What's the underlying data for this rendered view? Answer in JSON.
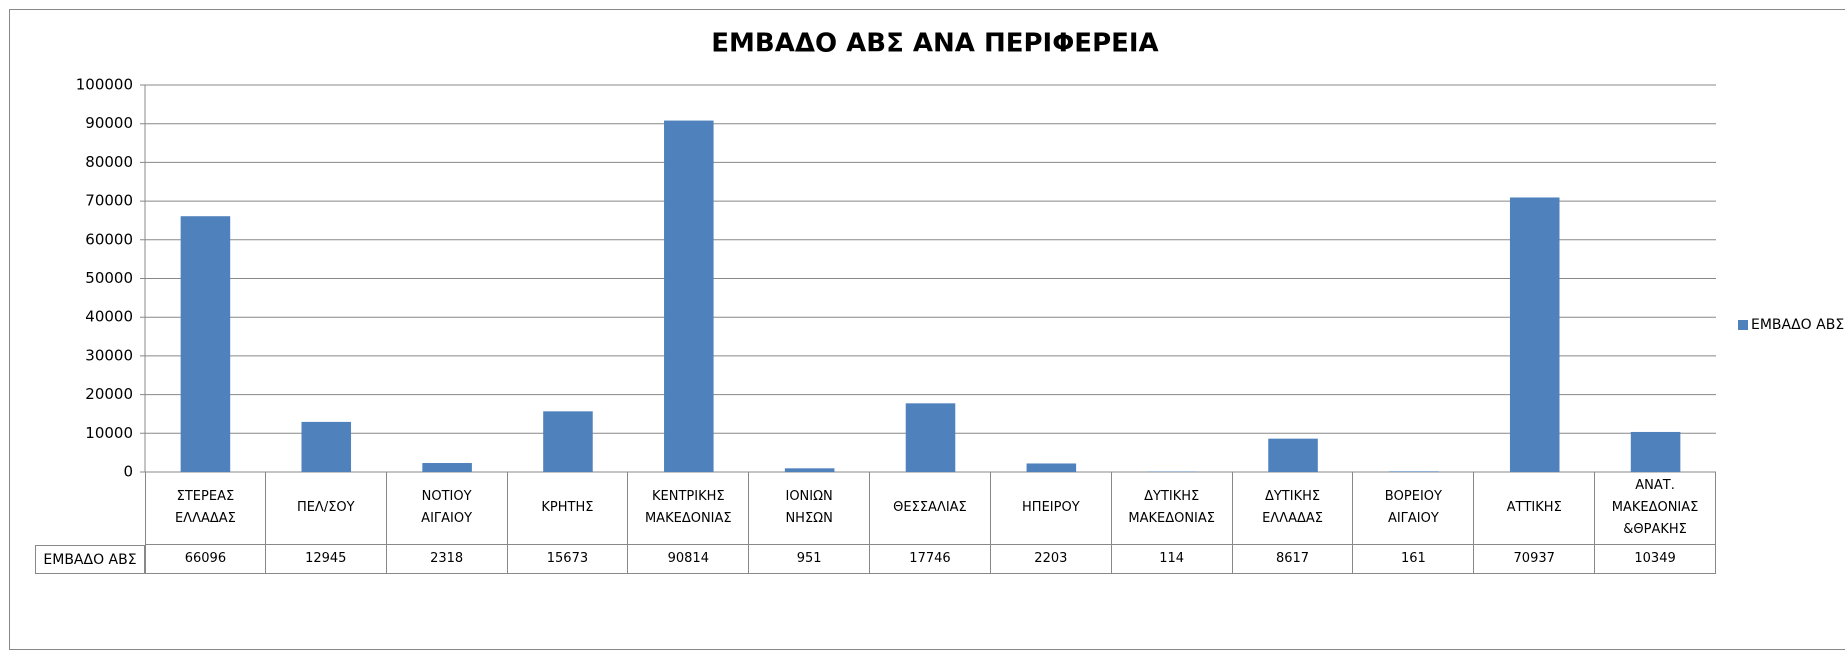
{
  "chart_data": {
    "type": "bar",
    "title": "ΕΜΒΑΔΟ ΑΒΣ ΑΝΑ ΠΕΡΙΦΕΡΕΙΑ",
    "categories": [
      "ΣΤΕΡΕΑΣ ΕΛΛΑΔΑΣ",
      "ΠΕΛ/ΣΟΥ",
      "ΝΟΤΙΟΥ ΑΙΓΑΙΟΥ",
      "ΚΡΗΤΗΣ",
      "ΚΕΝΤΡΙΚΗΣ ΜΑΚΕΔΟΝΙΑΣ",
      "ΙΟΝΙΩΝ ΝΗΣΩΝ",
      "ΘΕΣΣΑΛΙΑΣ",
      "ΗΠΕΙΡΟΥ",
      "ΔΥΤΙΚΗΣ ΜΑΚΕΔΟΝΙΑΣ",
      "ΔΥΤΙΚΗΣ ΕΛΛΑΔΑΣ",
      "ΒΟΡΕΙΟΥ ΑΙΓΑΙΟΥ",
      "ΑΤΤΙΚΗΣ",
      "ΑΝΑΤ. ΜΑΚΕΔΟΝΙΑΣ &ΘΡΑΚΗΣ"
    ],
    "series": [
      {
        "name": "ΕΜΒΑΔΟ ΑΒΣ",
        "color": "#4f81bd",
        "values": [
          66096,
          12945,
          2318,
          15673,
          90814,
          951,
          17746,
          2203,
          114,
          8617,
          161,
          70937,
          10349
        ]
      }
    ],
    "ylim": [
      0,
      100000
    ],
    "yticks": [
      0,
      10000,
      20000,
      30000,
      40000,
      50000,
      60000,
      70000,
      80000,
      90000,
      100000
    ],
    "grid": true,
    "legend": "right"
  }
}
